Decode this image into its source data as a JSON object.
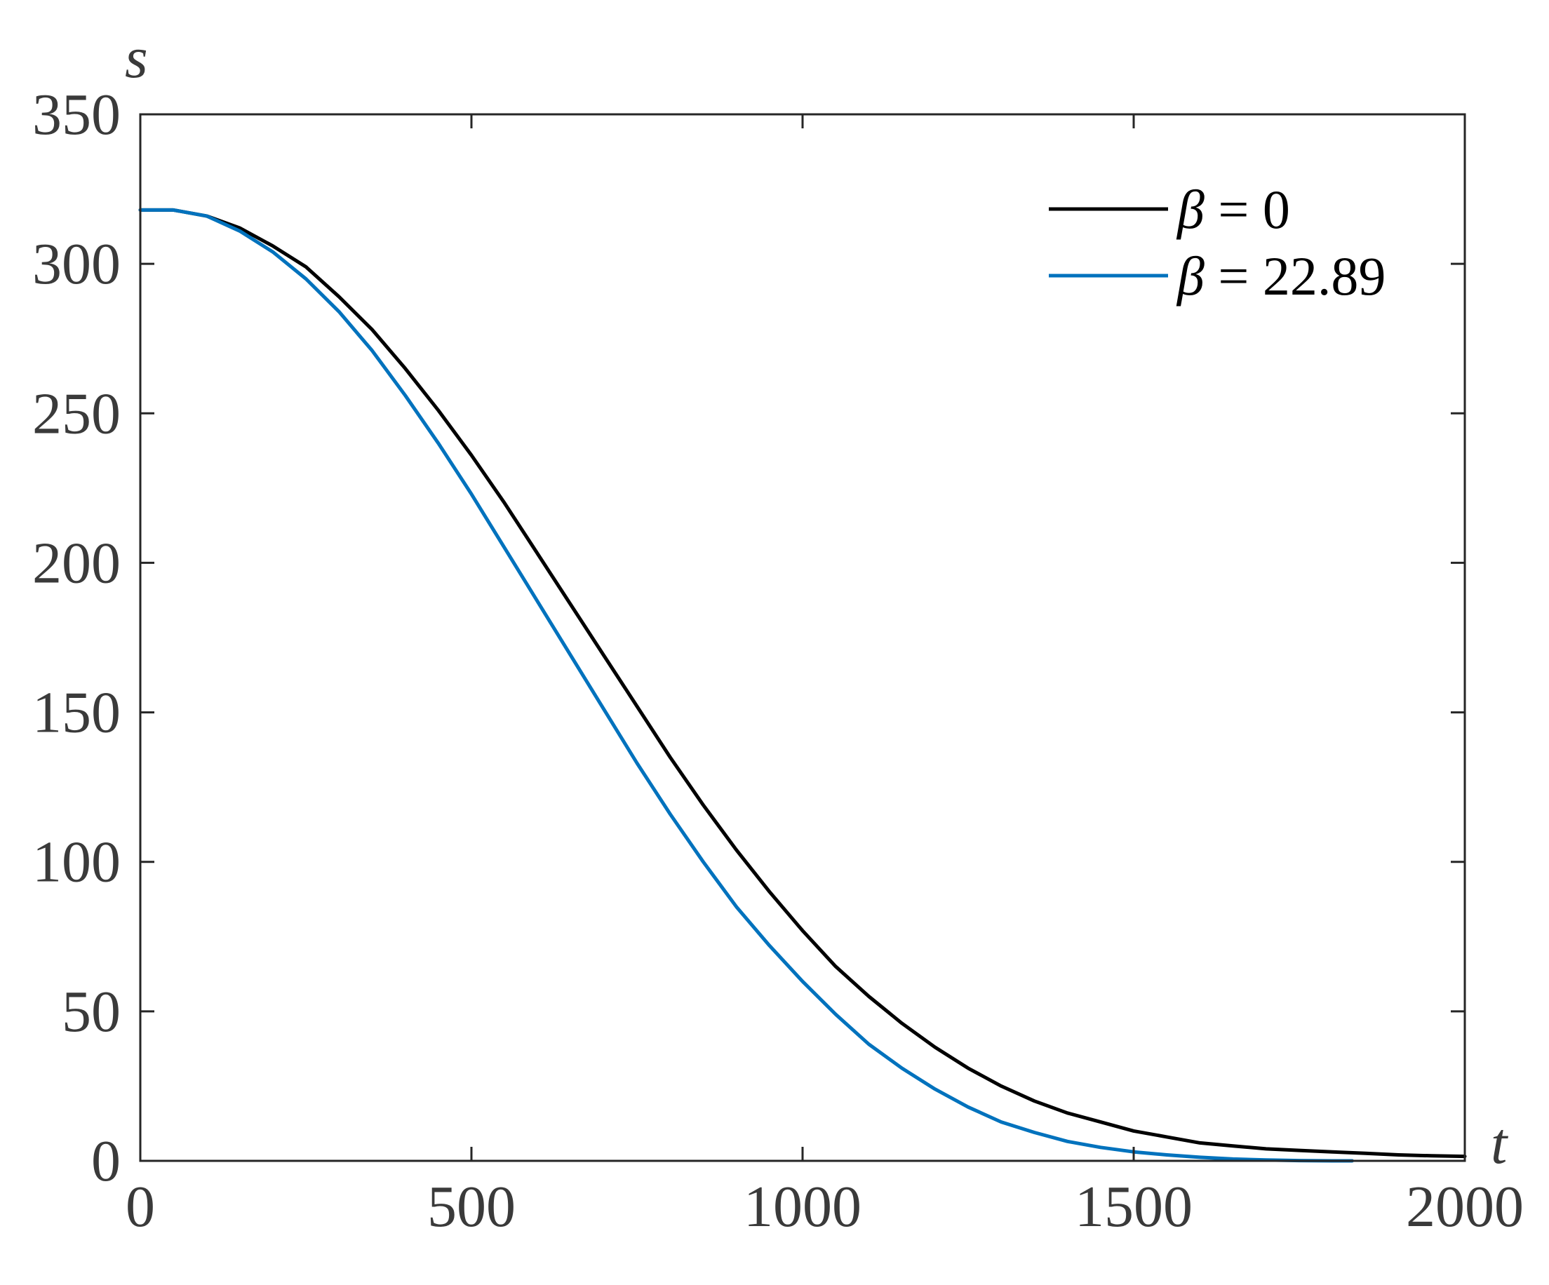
{
  "chart_data": {
    "type": "line",
    "title": "",
    "xlabel": "t",
    "ylabel": "s",
    "xlim": [
      0,
      2000
    ],
    "ylim": [
      0,
      350
    ],
    "xticks": [
      0,
      500,
      1000,
      1500,
      2000
    ],
    "yticks": [
      0,
      50,
      100,
      150,
      200,
      250,
      300,
      350
    ],
    "xtick_labels": [
      "0",
      "500",
      "1000",
      "1500",
      "2000"
    ],
    "ytick_labels": [
      "0",
      "50",
      "100",
      "150",
      "200",
      "250",
      "300",
      "350"
    ],
    "grid": false,
    "legend_position": "top-right",
    "series": [
      {
        "name": "β = 0",
        "name_symbol": "β",
        "name_rest": " = 0",
        "color": "#000000",
        "x": [
          0,
          50,
          100,
          150,
          200,
          250,
          300,
          350,
          400,
          450,
          500,
          550,
          600,
          650,
          700,
          750,
          800,
          850,
          900,
          950,
          1000,
          1050,
          1100,
          1150,
          1200,
          1250,
          1300,
          1350,
          1400,
          1450,
          1500,
          1550,
          1600,
          1650,
          1700,
          1750,
          1800,
          1850,
          1900,
          1950,
          2000
        ],
        "y": [
          318,
          318,
          316,
          312,
          306,
          299,
          289,
          278,
          265,
          251,
          236,
          220,
          203,
          186,
          169,
          152,
          135,
          119,
          104,
          90,
          77,
          65,
          55,
          46,
          38,
          31,
          25,
          20,
          16,
          13,
          10,
          8,
          6,
          5,
          4,
          3.5,
          3,
          2.5,
          2,
          1.7,
          1.5
        ]
      },
      {
        "name": "β = 22.89",
        "name_symbol": "β",
        "name_rest": " = 22.89",
        "color": "#0072bd",
        "x": [
          0,
          50,
          100,
          150,
          200,
          250,
          300,
          350,
          400,
          450,
          500,
          550,
          600,
          650,
          700,
          750,
          800,
          850,
          900,
          950,
          1000,
          1050,
          1100,
          1150,
          1200,
          1250,
          1300,
          1350,
          1400,
          1450,
          1500,
          1550,
          1600,
          1650,
          1700,
          1750,
          1800,
          1830
        ],
        "y": [
          318,
          318,
          316,
          311,
          304,
          295,
          284,
          271,
          256,
          240,
          223,
          205,
          187,
          169,
          151,
          133,
          116,
          100,
          85,
          72,
          60,
          49,
          39,
          31,
          24,
          18,
          13,
          9.5,
          6.5,
          4.5,
          3,
          2,
          1.2,
          0.6,
          0.3,
          0.1,
          0,
          0
        ]
      }
    ]
  }
}
